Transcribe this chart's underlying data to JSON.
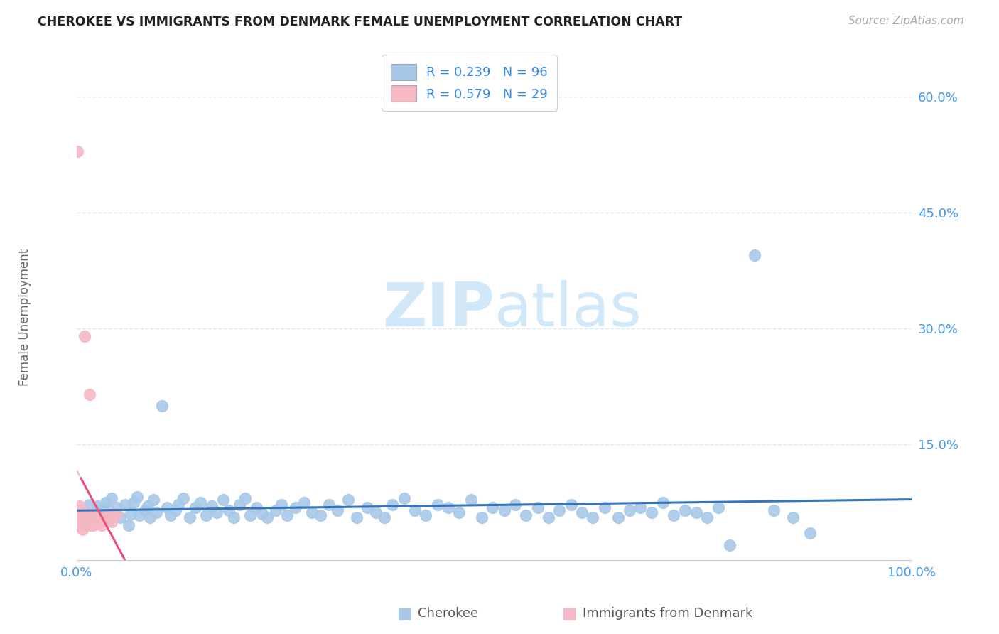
{
  "title": "CHEROKEE VS IMMIGRANTS FROM DENMARK FEMALE UNEMPLOYMENT CORRELATION CHART",
  "source": "Source: ZipAtlas.com",
  "ylabel": "Female Unemployment",
  "xlim": [
    0,
    1.0
  ],
  "ylim": [
    0,
    0.65
  ],
  "ytick_vals": [
    0.0,
    0.15,
    0.3,
    0.45,
    0.6
  ],
  "ytick_labels": [
    "",
    "15.0%",
    "30.0%",
    "45.0%",
    "60.0%"
  ],
  "xtick_vals": [
    0.0,
    1.0
  ],
  "xtick_labels": [
    "0.0%",
    "100.0%"
  ],
  "r_cherokee": 0.239,
  "n_cherokee": 96,
  "r_denmark": 0.579,
  "n_denmark": 29,
  "cherokee_color": "#a8c8e8",
  "cherokee_line_color": "#3575bb",
  "denmark_color": "#f5b8c4",
  "denmark_line_color": "#e8507a",
  "denmark_line_dashed_color": "#e8a0b8",
  "watermark_color": "#d0e8f8",
  "title_color": "#222222",
  "axis_label_color": "#4499ee",
  "grid_color": "#d8e8f0",
  "legend_text_color": "#3388ee",
  "legend_n_color": "#cc2222",
  "background_color": "#ffffff",
  "cherokee_scatter_x": [
    0.003,
    0.008,
    0.012,
    0.015,
    0.018,
    0.022,
    0.025,
    0.028,
    0.032,
    0.035,
    0.038,
    0.042,
    0.045,
    0.048,
    0.052,
    0.058,
    0.062,
    0.065,
    0.068,
    0.072,
    0.075,
    0.082,
    0.085,
    0.088,
    0.092,
    0.095,
    0.102,
    0.108,
    0.112,
    0.118,
    0.122,
    0.128,
    0.135,
    0.142,
    0.148,
    0.155,
    0.162,
    0.168,
    0.175,
    0.182,
    0.188,
    0.195,
    0.202,
    0.208,
    0.215,
    0.222,
    0.228,
    0.238,
    0.245,
    0.252,
    0.262,
    0.272,
    0.282,
    0.292,
    0.302,
    0.312,
    0.325,
    0.335,
    0.348,
    0.358,
    0.368,
    0.378,
    0.392,
    0.405,
    0.418,
    0.432,
    0.445,
    0.458,
    0.472,
    0.485,
    0.498,
    0.512,
    0.525,
    0.538,
    0.552,
    0.565,
    0.578,
    0.592,
    0.605,
    0.618,
    0.632,
    0.648,
    0.662,
    0.675,
    0.688,
    0.702,
    0.715,
    0.728,
    0.742,
    0.755,
    0.768,
    0.782,
    0.812,
    0.835,
    0.858,
    0.878
  ],
  "cherokee_scatter_y": [
    0.05,
    0.065,
    0.048,
    0.072,
    0.055,
    0.062,
    0.07,
    0.058,
    0.068,
    0.075,
    0.052,
    0.08,
    0.06,
    0.068,
    0.055,
    0.072,
    0.045,
    0.06,
    0.075,
    0.082,
    0.058,
    0.065,
    0.07,
    0.055,
    0.078,
    0.062,
    0.2,
    0.068,
    0.058,
    0.065,
    0.072,
    0.08,
    0.055,
    0.068,
    0.075,
    0.058,
    0.07,
    0.062,
    0.078,
    0.065,
    0.055,
    0.072,
    0.08,
    0.058,
    0.068,
    0.06,
    0.055,
    0.065,
    0.072,
    0.058,
    0.068,
    0.075,
    0.062,
    0.058,
    0.072,
    0.065,
    0.078,
    0.055,
    0.068,
    0.062,
    0.055,
    0.072,
    0.08,
    0.065,
    0.058,
    0.072,
    0.068,
    0.062,
    0.078,
    0.055,
    0.068,
    0.065,
    0.072,
    0.058,
    0.068,
    0.055,
    0.065,
    0.072,
    0.062,
    0.055,
    0.068,
    0.055,
    0.065,
    0.068,
    0.062,
    0.075,
    0.058,
    0.065,
    0.062,
    0.055,
    0.068,
    0.02,
    0.395,
    0.065,
    0.055,
    0.035
  ],
  "denmark_scatter_x": [
    0.001,
    0.002,
    0.003,
    0.003,
    0.004,
    0.005,
    0.005,
    0.006,
    0.007,
    0.008,
    0.009,
    0.01,
    0.011,
    0.012,
    0.013,
    0.014,
    0.015,
    0.016,
    0.017,
    0.018,
    0.02,
    0.022,
    0.025,
    0.028,
    0.03,
    0.035,
    0.038,
    0.042,
    0.048
  ],
  "denmark_scatter_y": [
    0.53,
    0.06,
    0.055,
    0.07,
    0.05,
    0.065,
    0.045,
    0.06,
    0.04,
    0.055,
    0.29,
    0.05,
    0.045,
    0.06,
    0.055,
    0.05,
    0.215,
    0.06,
    0.045,
    0.055,
    0.045,
    0.06,
    0.055,
    0.05,
    0.045,
    0.055,
    0.06,
    0.05,
    0.06
  ]
}
